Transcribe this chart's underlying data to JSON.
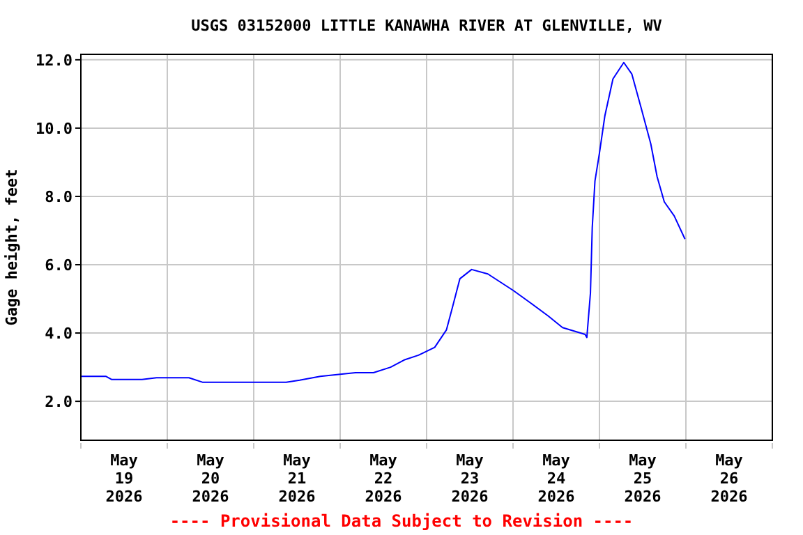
{
  "chart_data": {
    "type": "line",
    "title": "USGS 03152000 LITTLE KANAWHA RIVER AT GLENVILLE, WV",
    "ylabel": "Gage height, feet",
    "annotations": [
      "---- Provisional Data Subject to Revision ----"
    ],
    "x": [
      "2026-05-19T00:00",
      "2026-05-19T07:00",
      "2026-05-19T08:30",
      "2026-05-19T17:00",
      "2026-05-19T21:00",
      "2026-05-20T06:00",
      "2026-05-20T09:45",
      "2026-05-21T09:00",
      "2026-05-21T12:45",
      "2026-05-21T18:30",
      "2026-05-22T00:30",
      "2026-05-22T04:15",
      "2026-05-22T09:15",
      "2026-05-22T14:00",
      "2026-05-22T17:45",
      "2026-05-22T21:45",
      "2026-05-23T02:15",
      "2026-05-23T05:30",
      "2026-05-23T07:15",
      "2026-05-23T09:15",
      "2026-05-23T12:30",
      "2026-05-23T17:00",
      "2026-05-24T00:00",
      "2026-05-24T04:30",
      "2026-05-24T09:45",
      "2026-05-24T13:45",
      "2026-05-24T20:00",
      "2026-05-24T20:30",
      "2026-05-24T21:30",
      "2026-05-24T22:00",
      "2026-05-24T22:45",
      "2026-05-25T00:00",
      "2026-05-25T01:30",
      "2026-05-25T03:45",
      "2026-05-25T06:45",
      "2026-05-25T09:00",
      "2026-05-25T11:30",
      "2026-05-25T14:15",
      "2026-05-25T16:00",
      "2026-05-25T18:00",
      "2026-05-25T20:45",
      "2026-05-25T23:45"
    ],
    "series": [
      {
        "color": "#0000ff",
        "values": [
          2.73,
          2.73,
          2.64,
          2.64,
          2.69,
          2.69,
          2.56,
          2.56,
          2.62,
          2.73,
          2.8,
          2.84,
          2.84,
          3.0,
          3.21,
          3.35,
          3.58,
          4.09,
          4.78,
          5.59,
          5.86,
          5.73,
          5.25,
          4.91,
          4.5,
          4.16,
          3.96,
          3.87,
          5.18,
          7.09,
          8.45,
          9.27,
          10.36,
          11.44,
          11.92,
          11.58,
          10.62,
          9.54,
          8.58,
          7.84,
          7.43,
          6.75
        ]
      }
    ],
    "xlim": [
      "2026-05-19T00:00",
      "2026-05-27T00:00"
    ],
    "xticks": [
      {
        "value": "2026-05-19T00:00",
        "label": null
      },
      {
        "value": "2026-05-19T12:00",
        "label": "May\n19\n2026"
      },
      {
        "value": "2026-05-20T00:00",
        "label": null
      },
      {
        "value": "2026-05-20T12:00",
        "label": "May\n20\n2026"
      },
      {
        "value": "2026-05-21T00:00",
        "label": null
      },
      {
        "value": "2026-05-21T12:00",
        "label": "May\n21\n2026"
      },
      {
        "value": "2026-05-22T00:00",
        "label": null
      },
      {
        "value": "2026-05-22T12:00",
        "label": "May\n22\n2026"
      },
      {
        "value": "2026-05-23T00:00",
        "label": null
      },
      {
        "value": "2026-05-23T12:00",
        "label": "May\n23\n2026"
      },
      {
        "value": "2026-05-24T00:00",
        "label": null
      },
      {
        "value": "2026-05-24T12:00",
        "label": "May\n24\n2026"
      },
      {
        "value": "2026-05-25T00:00",
        "label": null
      },
      {
        "value": "2026-05-25T12:00",
        "label": "May\n25\n2026"
      },
      {
        "value": "2026-05-26T00:00",
        "label": null
      },
      {
        "value": "2026-05-26T12:00",
        "label": "May\n26\n2026"
      },
      {
        "value": "2026-05-27T00:00",
        "label": null
      }
    ],
    "ylim": [
      0.86,
      12.16
    ],
    "yticks": [
      {
        "value": 2,
        "label": "2.0"
      },
      {
        "value": 4,
        "label": "4.0"
      },
      {
        "value": 6,
        "label": "6.0"
      },
      {
        "value": 8,
        "label": "8.0"
      },
      {
        "value": 10,
        "label": "10.0"
      },
      {
        "value": 12,
        "label": "12.0"
      }
    ],
    "grid": true,
    "legend": false,
    "marker": "none",
    "line_style": "solid"
  }
}
